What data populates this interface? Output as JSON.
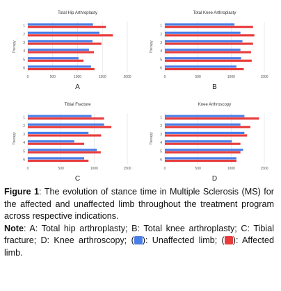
{
  "chart_data": [
    {
      "type": "bar",
      "orientation": "horizontal",
      "title": "Total Hip Arthroplasty",
      "panel": "A",
      "ylabel": "Therapy",
      "categories": [
        "1",
        "2",
        "3",
        "4",
        "5",
        "6"
      ],
      "series": [
        {
          "color": "#4a7fe8",
          "values": [
            1310,
            1440,
            1300,
            1230,
            1020,
            1270
          ]
        },
        {
          "color": "#e83c3c",
          "values": [
            1570,
            1710,
            1480,
            1330,
            1120,
            1340
          ]
        }
      ],
      "xlim": [
        0,
        2000
      ],
      "xticks": [
        0,
        500,
        1000,
        1500,
        2000
      ],
      "grid": true
    },
    {
      "type": "bar",
      "orientation": "horizontal",
      "title": "Total Knee Arthroplasty",
      "panel": "B",
      "ylabel": "Therapy",
      "categories": [
        "1",
        "2",
        "3",
        "4",
        "5",
        "6"
      ],
      "series": [
        {
          "color": "#4a7fe8",
          "values": [
            1050,
            1140,
            1170,
            1140,
            1150,
            1080
          ]
        },
        {
          "color": "#e83c3c",
          "values": [
            1330,
            1350,
            1330,
            1300,
            1310,
            1190
          ]
        }
      ],
      "xlim": [
        0,
        1500
      ],
      "xticks": [
        0,
        500,
        1000,
        1500
      ],
      "grid": true
    },
    {
      "type": "bar",
      "orientation": "horizontal",
      "title": "Tibial Fracture",
      "panel": "C",
      "ylabel": "Therapy",
      "categories": [
        "1",
        "2",
        "3",
        "4",
        "5",
        "6"
      ],
      "series": [
        {
          "color": "#4a7fe8",
          "values": [
            960,
            1150,
            915,
            700,
            1040,
            850
          ]
        },
        {
          "color": "#e83c3c",
          "values": [
            1150,
            1260,
            1105,
            850,
            1100,
            915
          ]
        }
      ],
      "xlim": [
        0,
        1500
      ],
      "xticks": [
        0,
        500,
        1000,
        1500
      ],
      "grid": true
    },
    {
      "type": "bar",
      "orientation": "horizontal",
      "title": "Knee Arthroscopy",
      "panel": "D",
      "ylabel": "Therapy",
      "categories": [
        "1",
        "2",
        "3",
        "4",
        "5",
        "6"
      ],
      "series": [
        {
          "color": "#4a7fe8",
          "values": [
            1200,
            1140,
            1200,
            1010,
            1180,
            1080
          ]
        },
        {
          "color": "#e83c3c",
          "values": [
            1420,
            1290,
            1240,
            1140,
            1140,
            1080
          ]
        }
      ],
      "xlim": [
        0,
        1500
      ],
      "xticks": [
        0,
        500,
        1000,
        1500
      ],
      "grid": true
    }
  ],
  "caption": {
    "label": "Figure 1",
    "text": ": The evolution of stance time in Multiple Sclerosis (MS) for the affected and unaffected limb throughout the treatment program across respective indications.",
    "note_label": "Note",
    "note_text": ": A: Total hip arthroplasty; B: Total knee arthroplasty; C: Tibial fracture; D: Knee arthroscopy; (",
    "unaffected": "): Unaffected limb; (",
    "affected": "): Affected limb."
  }
}
